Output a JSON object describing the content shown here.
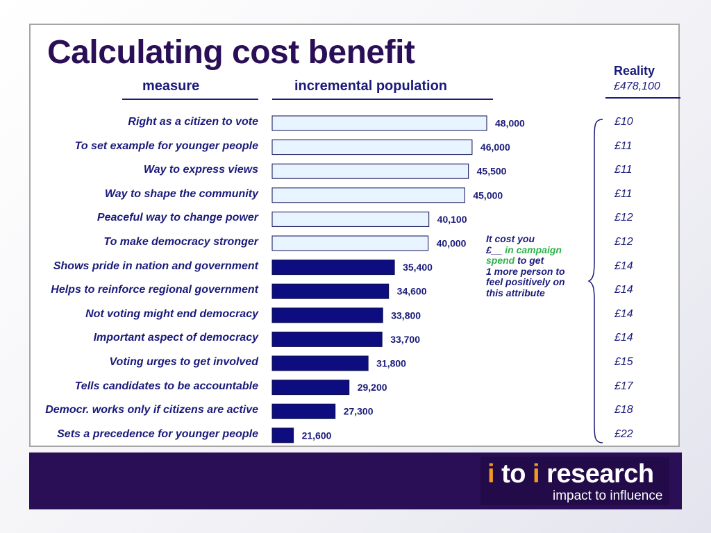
{
  "title": "Calculating cost benefit",
  "headers": {
    "measure": "measure",
    "population": "incremental population"
  },
  "reality": {
    "title": "Reality",
    "total": "£478,100"
  },
  "note": {
    "line1": "It cost you",
    "currency_blank": "£__",
    "green_a": "in campaign",
    "green_b": "spend",
    "line3_rest": "to get",
    "line4": "1 more person to",
    "line5": "feel positively on",
    "line6": "this attribute"
  },
  "logo": {
    "i1": "i",
    "to": " to ",
    "i2": "i",
    "research": " research",
    "tagline": "impact to influence"
  },
  "colors": {
    "title": "#2a0f57",
    "text": "#1a1a7a",
    "bar_light": "#e8f4ff",
    "bar_dark": "#0d0d80",
    "note_green": "#2db34a",
    "footer": "#2a0f57",
    "logo_accent": "#f29a1f"
  },
  "chart_data": {
    "type": "bar",
    "orientation": "horizontal",
    "categories": [
      "Right as a citizen to vote",
      "To set example for younger people",
      "Way to express views",
      "Way to shape the community",
      "Peaceful way to change power",
      "To make democracy stronger",
      "Shows pride in nation and government",
      "Helps to reinforce regional government",
      "Not voting might end democracy",
      "Important aspect of democracy",
      "Voting urges to get involved",
      "Tells candidates to be accountable",
      "Democr. works only if citizens are active",
      "Sets  a precedence for younger people"
    ],
    "values": [
      48000,
      46000,
      45500,
      45000,
      40100,
      40000,
      35400,
      34600,
      33800,
      33700,
      31800,
      29200,
      27300,
      21600
    ],
    "value_labels": [
      "48,000",
      "46,000",
      "45,500",
      "45,000",
      "40,100",
      "40,000",
      "35,400",
      "34,600",
      "33,800",
      "33,700",
      "31,800",
      "29,200",
      "27,300",
      "21,600"
    ],
    "bar_style": [
      "light",
      "light",
      "light",
      "light",
      "light",
      "light",
      "dark",
      "dark",
      "dark",
      "dark",
      "dark",
      "dark",
      "dark",
      "dark"
    ],
    "cost_per_person": [
      "£10",
      "£11",
      "£11",
      "£11",
      "£12",
      "£12",
      "£14",
      "£14",
      "£14",
      "£14",
      "£15",
      "£17",
      "£18",
      "£22"
    ],
    "xlim": [
      18700,
      48000
    ]
  }
}
